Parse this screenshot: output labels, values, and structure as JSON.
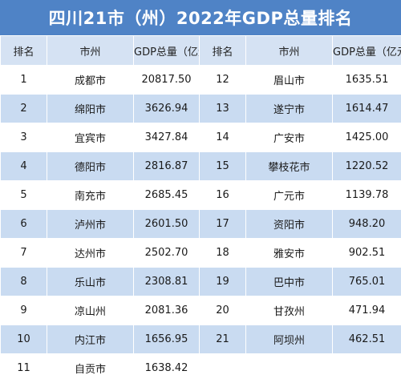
{
  "title": "四川21市（州）2022年GDP总量排名",
  "headers": [
    "排名",
    "市州",
    "GDP总量（亿元）",
    "排名",
    "市州",
    "GDP总量（亿元）"
  ],
  "rows": [
    [
      [
        "1",
        "成都市",
        "20817.50"
      ],
      [
        "12",
        "眉山市",
        "1635.51"
      ]
    ],
    [
      [
        "2",
        "绵阳市",
        "3626.94"
      ],
      [
        "13",
        "遂宁市",
        "1614.47"
      ]
    ],
    [
      [
        "3",
        "宜宾市",
        "3427.84"
      ],
      [
        "14",
        "广安市",
        "1425.00"
      ]
    ],
    [
      [
        "4",
        "德阳市",
        "2816.87"
      ],
      [
        "15",
        "攀枝花市",
        "1220.52"
      ]
    ],
    [
      [
        "5",
        "南充市",
        "2685.45"
      ],
      [
        "16",
        "广元市",
        "1139.78"
      ]
    ],
    [
      [
        "6",
        "泸州市",
        "2601.50"
      ],
      [
        "17",
        "资阳市",
        "948.20"
      ]
    ],
    [
      [
        "7",
        "达州市",
        "2502.70"
      ],
      [
        "18",
        "雅安市",
        "902.51"
      ]
    ],
    [
      [
        "8",
        "乐山市",
        "2308.81"
      ],
      [
        "19",
        "巴中市",
        "765.01"
      ]
    ],
    [
      [
        "9",
        "凉山州",
        "2081.36"
      ],
      [
        "20",
        "甘孜州",
        "471.94"
      ]
    ],
    [
      [
        "10",
        "内江市",
        "1656.95"
      ],
      [
        "21",
        "阿坝州",
        "462.51"
      ]
    ],
    [
      [
        "11",
        "自贡市",
        "1638.42"
      ],
      [
        "",
        "",
        ""
      ]
    ]
  ],
  "colors": {
    "header_bar": "#4f83c6",
    "header_row": "#d5e2f3",
    "stripe": "#c9dbf1"
  }
}
